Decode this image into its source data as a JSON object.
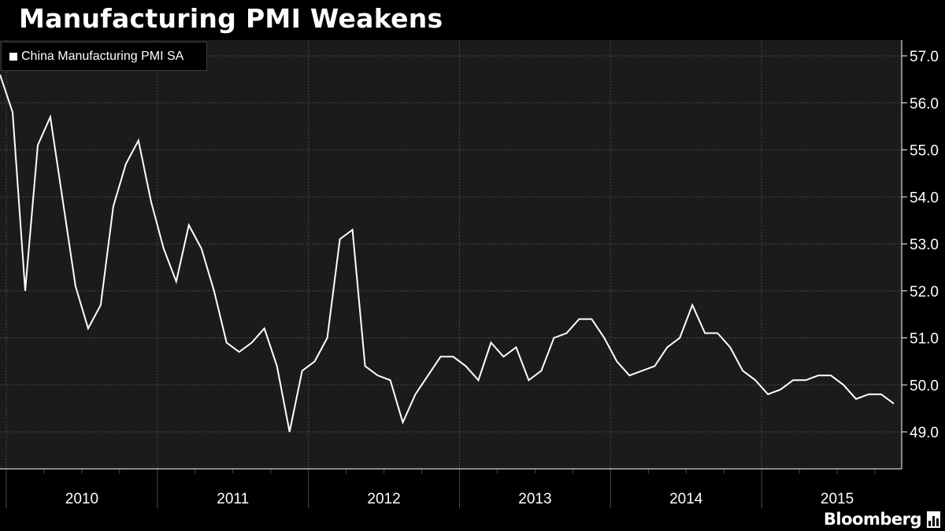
{
  "chart_data": {
    "type": "line",
    "title": "Manufacturing PMI Weakens",
    "subtitle": "",
    "xlabel": "",
    "ylabel": "",
    "ylim": [
      48.3,
      57.3
    ],
    "yticks": [
      49.0,
      50.0,
      51.0,
      52.0,
      53.0,
      54.0,
      55.0,
      56.0,
      57.0
    ],
    "ytick_labels": [
      "49.0",
      "50.0",
      "51.0",
      "52.0",
      "53.0",
      "54.0",
      "55.0",
      "56.0",
      "57.0"
    ],
    "y_axis_position": "right",
    "year_labels": [
      "2010",
      "2011",
      "2012",
      "2013",
      "2014",
      "2015"
    ],
    "x_start": "2009-12",
    "x_end": "2015-12",
    "grid": true,
    "legend_position": "top-left",
    "series": [
      {
        "name": "China Manufacturing PMI SA",
        "color": "#ffffff",
        "x": [
          "2009-12",
          "2010-01",
          "2010-02",
          "2010-03",
          "2010-04",
          "2010-05",
          "2010-06",
          "2010-07",
          "2010-08",
          "2010-09",
          "2010-10",
          "2010-11",
          "2010-12",
          "2011-01",
          "2011-02",
          "2011-03",
          "2011-04",
          "2011-05",
          "2011-06",
          "2011-07",
          "2011-08",
          "2011-09",
          "2011-10",
          "2011-11",
          "2011-12",
          "2012-01",
          "2012-02",
          "2012-03",
          "2012-04",
          "2012-05",
          "2012-06",
          "2012-07",
          "2012-08",
          "2012-09",
          "2012-10",
          "2012-11",
          "2012-12",
          "2013-01",
          "2013-02",
          "2013-03",
          "2013-04",
          "2013-05",
          "2013-06",
          "2013-07",
          "2013-08",
          "2013-09",
          "2013-10",
          "2013-11",
          "2013-12",
          "2014-01",
          "2014-02",
          "2014-03",
          "2014-04",
          "2014-05",
          "2014-06",
          "2014-07",
          "2014-08",
          "2014-09",
          "2014-10",
          "2014-11",
          "2014-12",
          "2015-01",
          "2015-02",
          "2015-03",
          "2015-04",
          "2015-05",
          "2015-06",
          "2015-07",
          "2015-08",
          "2015-09",
          "2015-10",
          "2015-11"
        ],
        "values": [
          56.6,
          55.8,
          52.0,
          55.1,
          55.7,
          53.9,
          52.1,
          51.2,
          51.7,
          53.8,
          54.7,
          55.2,
          53.9,
          52.9,
          52.2,
          53.4,
          52.9,
          52.0,
          50.9,
          50.7,
          50.9,
          51.2,
          50.4,
          49.0,
          50.3,
          50.5,
          51.0,
          53.1,
          53.3,
          50.4,
          50.2,
          50.1,
          49.2,
          49.8,
          50.2,
          50.6,
          50.6,
          50.4,
          50.1,
          50.9,
          50.6,
          50.8,
          50.1,
          50.3,
          51.0,
          51.1,
          51.4,
          51.4,
          51.0,
          50.5,
          50.2,
          50.3,
          50.4,
          50.8,
          51.0,
          51.7,
          51.1,
          51.1,
          50.8,
          50.3,
          50.1,
          49.8,
          49.9,
          50.1,
          50.1,
          50.2,
          50.2,
          50.0,
          49.7,
          49.8,
          49.8,
          49.6
        ]
      }
    ]
  },
  "colors": {
    "background": "#000000",
    "plot_background": "#1b1b1b",
    "grid": "#4a4a4a",
    "line": "#ffffff",
    "text": "#ffffff"
  },
  "legend": {
    "label": "China Manufacturing PMI SA"
  },
  "footer": {
    "brand": "Bloomberg",
    "brand_icon": "bloomberg-bar-icon"
  }
}
